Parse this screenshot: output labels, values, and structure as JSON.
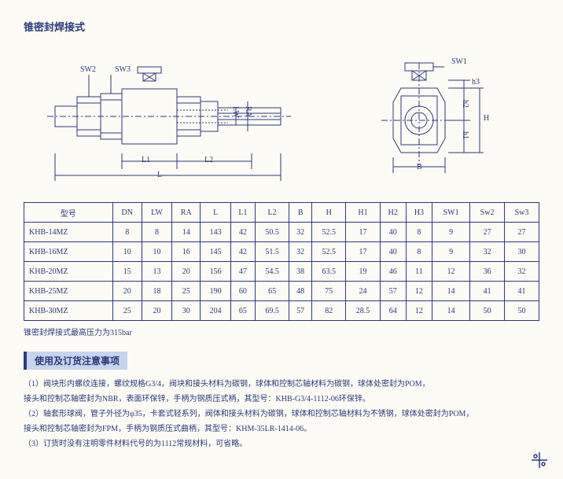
{
  "title": "锥密封焊接式",
  "diagram": {
    "labels": [
      "SW2",
      "SW3",
      "L1",
      "L2",
      "L",
      "LW",
      "RA",
      "SW1",
      "h3",
      "h2",
      "h1",
      "H",
      "B"
    ],
    "stroke": "#2a3a7a"
  },
  "table": {
    "headers": [
      "型号",
      "DN",
      "LW",
      "RA",
      "L",
      "L1",
      "L2",
      "B",
      "H",
      "H1",
      "H2",
      "H3",
      "SW1",
      "Sw2",
      "Sw3"
    ],
    "rows": [
      [
        "KHB-14MZ",
        "8",
        "8",
        "14",
        "143",
        "42",
        "50.5",
        "32",
        "52.5",
        "17",
        "40",
        "8",
        "9",
        "27",
        "27"
      ],
      [
        "KHB-16MZ",
        "10",
        "10",
        "16",
        "145",
        "42",
        "51.5",
        "32",
        "52.5",
        "17",
        "40",
        "8",
        "9",
        "32",
        "30"
      ],
      [
        "KHB-20MZ",
        "15",
        "13",
        "20",
        "156",
        "47",
        "54.5",
        "38",
        "63.5",
        "19",
        "46",
        "11",
        "12",
        "36",
        "32"
      ],
      [
        "KHB-25MZ",
        "20",
        "18",
        "25",
        "190",
        "60",
        "65",
        "48",
        "75",
        "24",
        "57",
        "12",
        "14",
        "41",
        "41"
      ],
      [
        "KHB-30MZ",
        "25",
        "20",
        "30",
        "204",
        "65",
        "69.5",
        "57",
        "82",
        "28.5",
        "64",
        "12",
        "14",
        "50",
        "50"
      ]
    ]
  },
  "table_note": "锥密封焊接式最高压力为315bar",
  "section_header": "使用及订货注意事项",
  "notes": [
    "（1）阀块形内螺纹连接，螺纹规格G3/4，阀块和接头材料为碳钢，球体和控制芯轴材料为碳钢，球体处密封为POM，",
    "        接头和控制芯轴密封为NBR，表面环保锌，手柄为钢质压式柄，其型号：KHB-G3/4-1112-06环保锌。",
    "（2）轴套形球阀，管子外径为φ35，卡套式轻系列，阀体和接头材料为碳钢，球体和控制芯轴材料为不锈钢，球体处密封为POM，",
    "        接头和控制芯轴密封为FPM，手柄为钢质压式曲柄，其型号：KHM-35LR-1414-06。",
    "（3）订货时没有注明零件材料代号的为1112常规材料，可省略。"
  ]
}
